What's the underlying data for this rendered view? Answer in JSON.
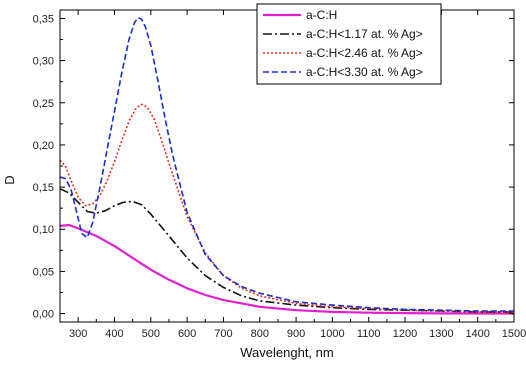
{
  "chart_data": {
    "type": "line",
    "title": "",
    "xlabel": "Wavelenght, nm",
    "ylabel": "D",
    "xlim": [
      250,
      1500
    ],
    "ylim": [
      -0.01,
      0.36
    ],
    "x_ticks": [
      300,
      400,
      500,
      600,
      700,
      800,
      900,
      1000,
      1100,
      1200,
      1300,
      1400,
      1500
    ],
    "y_ticks": [
      0.0,
      0.05,
      0.1,
      0.15,
      0.2,
      0.25,
      0.3,
      0.35
    ],
    "y_tick_labels": [
      "0,00",
      "0,05",
      "0,10",
      "0,15",
      "0,20",
      "0,25",
      "0,30",
      "0,35"
    ],
    "grid": false,
    "legend_position": "top-right",
    "series": [
      {
        "name": "a-C:H",
        "color": "#e020d0",
        "dash": "solid",
        "x": [
          250,
          275,
          300,
          350,
          400,
          450,
          500,
          550,
          600,
          650,
          700,
          800,
          900,
          1000,
          1100,
          1200,
          1300,
          1400,
          1500
        ],
        "y": [
          0.104,
          0.105,
          0.101,
          0.092,
          0.08,
          0.066,
          0.052,
          0.04,
          0.03,
          0.022,
          0.016,
          0.008,
          0.004,
          0.002,
          0.001,
          0.0005,
          0.0002,
          0.0001,
          0.0
        ]
      },
      {
        "name": "a-C:H<1.17 at. % Ag>",
        "color": "#111111",
        "dash": "dashdot",
        "x": [
          250,
          275,
          300,
          325,
          350,
          375,
          400,
          425,
          450,
          475,
          500,
          550,
          600,
          650,
          700,
          750,
          800,
          900,
          1000,
          1100,
          1200,
          1300,
          1400,
          1500
        ],
        "y": [
          0.148,
          0.143,
          0.132,
          0.121,
          0.119,
          0.122,
          0.128,
          0.132,
          0.133,
          0.129,
          0.118,
          0.092,
          0.066,
          0.045,
          0.031,
          0.021,
          0.015,
          0.01,
          0.007,
          0.005,
          0.004,
          0.003,
          0.002,
          0.002
        ]
      },
      {
        "name": "a-C:H<2.46 at. % Ag>",
        "color": "#e03020",
        "dash": "dotted",
        "x": [
          250,
          265,
          280,
          300,
          320,
          340,
          360,
          380,
          400,
          420,
          440,
          460,
          475,
          490,
          510,
          530,
          550,
          600,
          650,
          700,
          750,
          800,
          900,
          1000,
          1100,
          1200,
          1300,
          1400,
          1500
        ],
        "y": [
          0.182,
          0.175,
          0.158,
          0.138,
          0.128,
          0.13,
          0.14,
          0.158,
          0.18,
          0.205,
          0.228,
          0.244,
          0.248,
          0.245,
          0.23,
          0.205,
          0.178,
          0.115,
          0.072,
          0.045,
          0.03,
          0.021,
          0.012,
          0.008,
          0.006,
          0.004,
          0.003,
          0.002,
          0.002
        ]
      },
      {
        "name": "a-C:H<3.30 at. % Ag>",
        "color": "#1a2bd8",
        "dash": "dashed",
        "x": [
          250,
          265,
          280,
          295,
          310,
          325,
          340,
          360,
          380,
          400,
          420,
          440,
          455,
          465,
          475,
          485,
          500,
          520,
          540,
          560,
          600,
          650,
          700,
          750,
          800,
          900,
          1000,
          1100,
          1200,
          1300,
          1400,
          1500
        ],
        "y": [
          0.162,
          0.16,
          0.148,
          0.122,
          0.095,
          0.09,
          0.108,
          0.15,
          0.195,
          0.24,
          0.285,
          0.325,
          0.345,
          0.351,
          0.349,
          0.34,
          0.318,
          0.275,
          0.23,
          0.188,
          0.12,
          0.07,
          0.045,
          0.032,
          0.024,
          0.014,
          0.01,
          0.007,
          0.005,
          0.004,
          0.003,
          0.003
        ]
      }
    ]
  }
}
